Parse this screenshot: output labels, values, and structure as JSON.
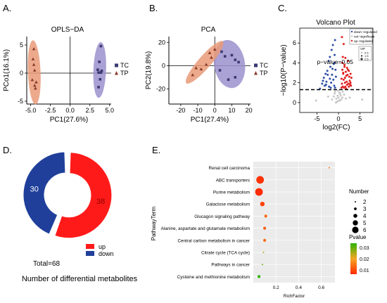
{
  "panels": {
    "A": {
      "letter": "A.",
      "chart_data": {
        "type": "scatter",
        "title": "OPLS−DA",
        "xlabel": "PC1(27.6%)",
        "ylabel": "PCo1(16.1%)",
        "xlim": [
          -5.5,
          5.2
        ],
        "ylim": [
          -5.5,
          6.5
        ],
        "xticks": [
          "-5.0",
          "-2.5",
          "0.0",
          "2.5",
          "5.0"
        ],
        "xtick_values": [
          -5,
          -2.5,
          0,
          2.5,
          5
        ],
        "yticks": [
          "-5",
          "0",
          "5"
        ],
        "ytick_values": [
          -5,
          0,
          5
        ],
        "legend_position": "right",
        "series": [
          {
            "name": "TC",
            "color": "#3b3a73",
            "marker": "square",
            "ellipse_color": "#9b91cc",
            "x": [
              3.9,
              3.7,
              3.6,
              3.9,
              3.8,
              3.6,
              3.5,
              4.0
            ],
            "y": [
              4.8,
              2.0,
              0.1,
              0.1,
              -1.1,
              -2.5,
              0.6,
              0.4
            ]
          },
          {
            "name": "TP",
            "color": "#8a3a2a",
            "marker": "triangle",
            "ellipse_color": "#e99a78",
            "x": [
              -4.6,
              -4.7,
              -4.5,
              -4.8,
              -4.4,
              -4.5,
              -4.3,
              -4.6
            ],
            "y": [
              4.3,
              2.5,
              0.5,
              -1.2,
              -2.7,
              -2.2,
              -1.6,
              1.5
            ]
          }
        ]
      }
    },
    "B": {
      "letter": "B.",
      "chart_data": {
        "type": "scatter",
        "title": "PCA",
        "xlabel": "PC1(27.4%)",
        "ylabel": "PC2(19.8%)",
        "xlim": [
          -27,
          21
        ],
        "ylim": [
          -33,
          25
        ],
        "xticks": [
          "-20",
          "-10",
          "0",
          "10",
          "20"
        ],
        "xtick_values": [
          -20,
          -10,
          0,
          10,
          20
        ],
        "yticks": [
          "-20",
          "0",
          "20"
        ],
        "ytick_values": [
          -20,
          0,
          20
        ],
        "legend_position": "right",
        "series": [
          {
            "name": "TC",
            "color": "#3b3a73",
            "marker": "square",
            "ellipse_color": "#9b91cc",
            "x": [
              4,
              6,
              10,
              12,
              14,
              12,
              8,
              3
            ],
            "y": [
              12,
              8,
              9,
              5,
              3,
              -10,
              -12,
              -4
            ]
          },
          {
            "name": "TP",
            "color": "#8a3a2a",
            "marker": "triangle",
            "ellipse_color": "#e99a78",
            "x": [
              -13,
              -8,
              -5,
              -2,
              -3,
              0,
              -11
            ],
            "y": [
              -8,
              -3,
              1,
              7,
              11,
              14,
              -2
            ]
          }
        ]
      }
    },
    "C": {
      "letter": "C.",
      "chart_data": {
        "type": "scatter",
        "title": "Volcano Plot",
        "xlabel": "log2(FC)",
        "ylabel": "−log10(P−value)",
        "xlim": [
          -9,
          8
        ],
        "ylim": [
          -1,
          7.5
        ],
        "xticks": [
          "-5",
          "0",
          "5"
        ],
        "xtick_values": [
          -5,
          0,
          5
        ],
        "yticks": [
          "0",
          "2",
          "4",
          "6"
        ],
        "ytick_values": [
          0,
          2,
          4,
          6
        ],
        "threshold_label": "p−value=0.05",
        "threshold_value": 1.3,
        "legend_position": "top-right",
        "legend": [
          "down−regulated",
          "not−significant",
          "up−regulated"
        ],
        "size_legend": {
          "title": "VIP",
          "items": [
            "0.5",
            "1.5",
            "2.5"
          ]
        },
        "series": [
          {
            "name": "down−regulated",
            "color": "#2f4fa8",
            "x": [
              -0.8,
              -1.3,
              -1.6,
              -2.0,
              -2.3,
              -0.9,
              -1.1,
              -1.9,
              -2.6,
              -3.0,
              -3.4,
              -0.7,
              -1.5,
              -2.8,
              -3.8,
              -1.2,
              -2.2,
              -0.6,
              -1.8,
              -4.3,
              -2.5,
              -1.0,
              -3.2,
              -0.9,
              -1.4,
              -2.0,
              -3.6,
              -2.9,
              -1.7,
              -0.8
            ],
            "y": [
              6.3,
              5.8,
              5.3,
              4.6,
              4.2,
              4.8,
              3.9,
              3.6,
              3.2,
              2.9,
              2.5,
              3.3,
              2.8,
              2.1,
              1.9,
              2.3,
              1.6,
              2.6,
              1.5,
              1.4,
              2.8,
              1.7,
              1.7,
              4.0,
              3.4,
              2.4,
              2.2,
              1.8,
              2.0,
              1.5
            ]
          },
          {
            "name": "not−significant",
            "color": "#c8c8c8",
            "x": [
              -0.5,
              -0.2,
              0.1,
              0.4,
              -0.8,
              0.9,
              -0.3,
              0.2,
              0.6,
              -1.1,
              1.3,
              -0.6,
              0.0,
              0.3,
              -1.5,
              1.7,
              -5.2,
              5.5,
              -2.4,
              2.6,
              -0.1,
              0.5,
              -0.9,
              1.0
            ],
            "y": [
              0.4,
              0.7,
              0.2,
              0.9,
              1.1,
              0.5,
              0.1,
              1.0,
              0.3,
              0.6,
              0.8,
              0.0,
              0.5,
              0.2,
              0.3,
              0.4,
              0.2,
              0.3,
              0.6,
              0.5,
              1.2,
              0.7,
              0.9,
              1.1
            ]
          },
          {
            "name": "up−regulated",
            "color": "#e02020",
            "x": [
              0.8,
              1.2,
              1.6,
              2.0,
              2.4,
              2.8,
              0.9,
              1.4,
              2.2,
              3.0,
              1.1,
              1.8,
              2.6,
              0.7,
              1.5,
              2.0,
              2.9,
              1.0,
              1.3,
              2.3,
              0.9,
              1.7,
              2.5,
              1.2,
              0.8,
              2.1,
              1.6,
              2.7,
              1.9,
              1.1,
              0.7,
              1.4,
              2.4,
              1.8,
              2.8,
              1.0,
              1.5,
              2.2
            ],
            "y": [
              6.6,
              5.9,
              4.5,
              3.5,
              3.2,
              2.9,
              4.0,
              3.8,
              4.2,
              2.5,
              3.0,
              2.7,
              2.2,
              2.4,
              2.0,
              1.8,
              1.7,
              1.6,
              1.5,
              1.9,
              3.3,
              3.1,
              2.6,
              2.3,
              1.9,
              2.8,
              1.6,
              1.8,
              2.1,
              2.9,
              1.5,
              3.6,
              1.6,
              1.4,
              2.0,
              4.6,
              2.5,
              3.3
            ]
          }
        ]
      }
    },
    "D": {
      "letter": "D.",
      "chart_data": {
        "type": "pie",
        "title": "Number of differential metabolites",
        "total_label": "Total=68",
        "slices": [
          {
            "label": "up",
            "value": 38,
            "value_label": "38",
            "color": "#ff1a1a"
          },
          {
            "label": "down",
            "value": 30,
            "value_label": "30",
            "color": "#1f3f9a"
          }
        ]
      }
    },
    "E": {
      "letter": "E.",
      "chart_data": {
        "type": "scatter",
        "xlabel": "RichFactor",
        "ylabel": "PathwayTerm",
        "xlim": [
          0.0,
          0.72
        ],
        "xticks": [
          "0.2",
          "0.4",
          "0.6"
        ],
        "xtick_values": [
          0.2,
          0.4,
          0.6
        ],
        "categories": [
          "Renal cell carcinoma",
          "ABC transporters",
          "Purine metabolism",
          "Galactose metabolism",
          "Glucagon signaling pathway",
          "Alanine, aspartate and glutamate metabolism",
          "Central carbon metabolism in cancer",
          "Citrate cycle (TCA cycle)",
          "Pathways in cancer",
          "Cysteine and methionine metabolism"
        ],
        "rich_factor": [
          0.67,
          0.06,
          0.05,
          0.08,
          0.11,
          0.1,
          0.1,
          0.09,
          0.08,
          0.05
        ],
        "number": [
          2,
          6,
          6,
          4,
          3,
          3,
          3,
          2,
          2,
          3
        ],
        "pvalue": [
          0.013,
          0.004,
          0.003,
          0.006,
          0.011,
          0.01,
          0.011,
          0.025,
          0.03,
          0.036
        ],
        "size_legend": {
          "title": "Number",
          "values": [
            "2",
            "3",
            "4",
            "5",
            "6"
          ]
        },
        "color_legend": {
          "title": "Pvalue",
          "ticks": [
            "0.03",
            "0.02",
            "0.01"
          ],
          "low_color": "#ff2a00",
          "mid_color": "#f5a623",
          "high_color": "#2db400"
        }
      }
    }
  }
}
